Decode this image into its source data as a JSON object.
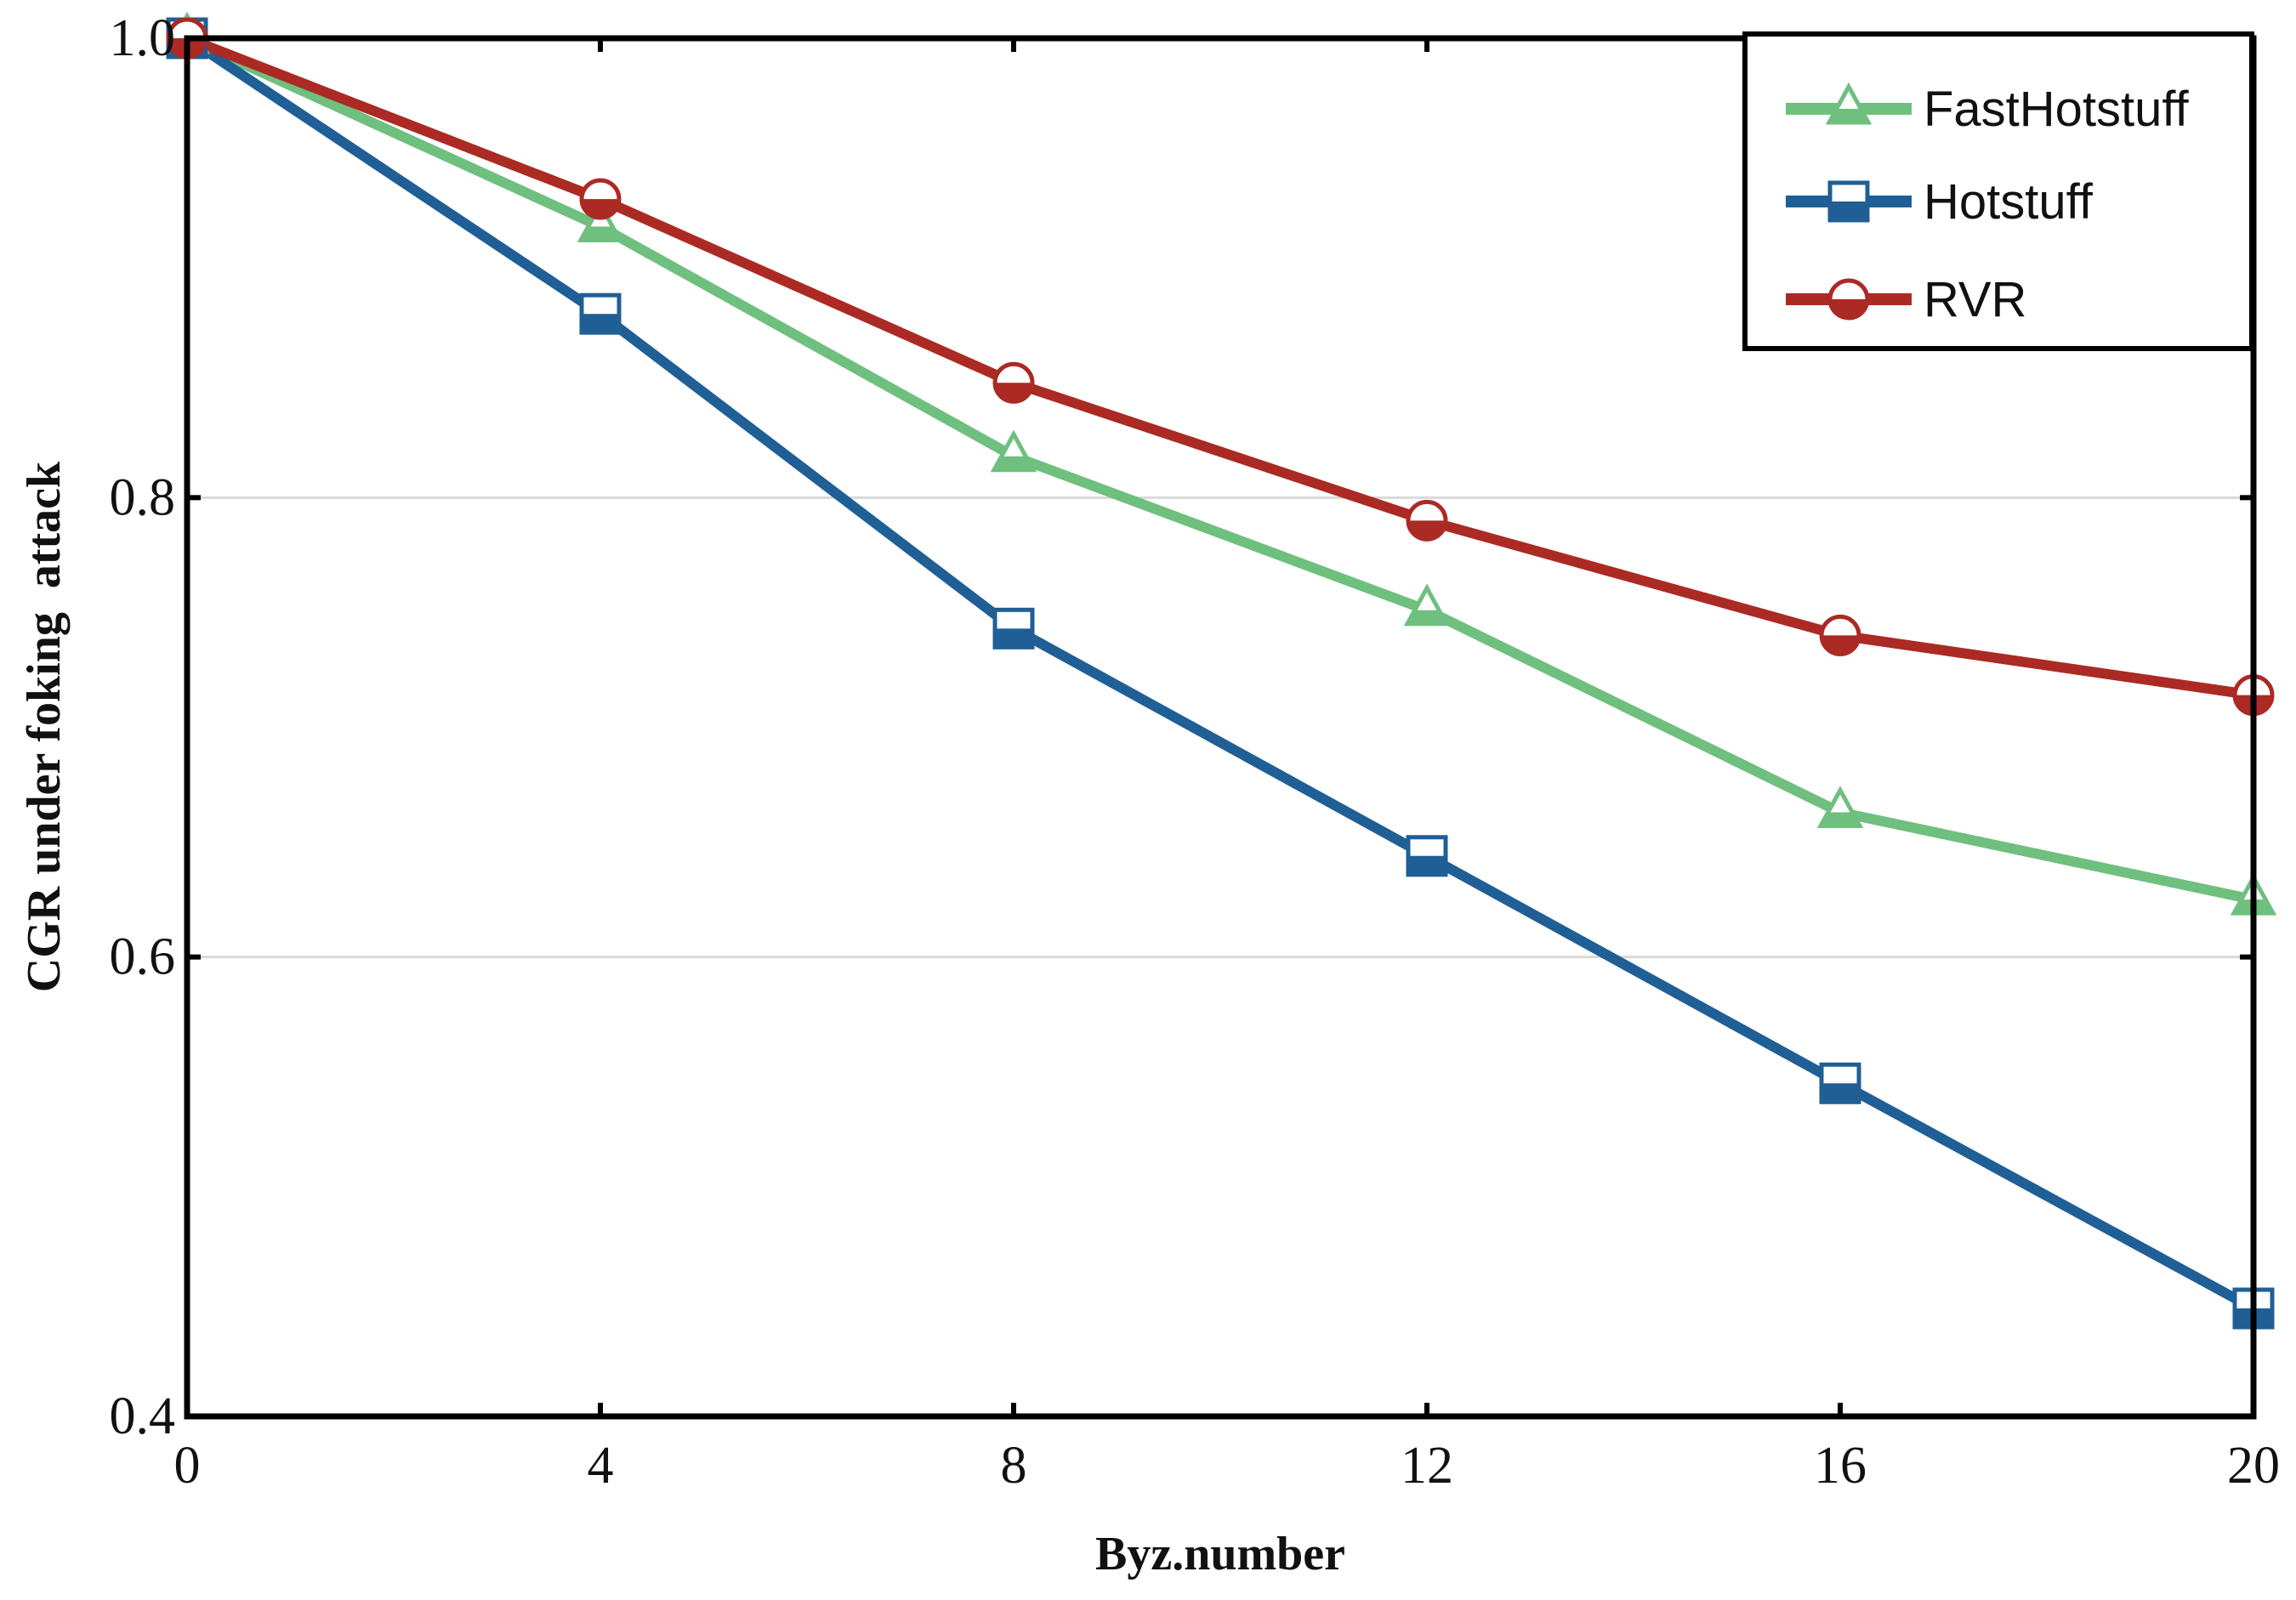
{
  "chart_data": {
    "type": "line",
    "title": "",
    "xlabel": "Byz.number",
    "ylabel": "CGR under foking  attack",
    "x": [
      0,
      4,
      8,
      12,
      16,
      20
    ],
    "xlim": [
      0,
      20
    ],
    "ylim": [
      0.4,
      1.0
    ],
    "xticks": [
      0,
      4,
      8,
      12,
      16,
      20
    ],
    "yticks": [
      0.4,
      0.6,
      0.8,
      1.0
    ],
    "xtick_labels": [
      "0",
      "4",
      "8",
      "12",
      "16",
      "20"
    ],
    "ytick_labels": [
      "0.4",
      "0.6",
      "0.8",
      "1.0"
    ],
    "grid": "horizontal",
    "legend_position": "top-right",
    "series": [
      {
        "name": "FastHotstuff",
        "color": "#6fbf7e",
        "marker": "triangle",
        "values": [
          1.0,
          0.918,
          0.818,
          0.751,
          0.663,
          0.625
        ]
      },
      {
        "name": "Hotstuff",
        "color": "#1f5f96",
        "marker": "square",
        "values": [
          1.0,
          0.88,
          0.743,
          0.644,
          0.545,
          0.447
        ]
      },
      {
        "name": "RVR",
        "color": "#ac2a24",
        "marker": "circle",
        "values": [
          1.0,
          0.93,
          0.85,
          0.79,
          0.74,
          0.714
        ]
      }
    ]
  }
}
